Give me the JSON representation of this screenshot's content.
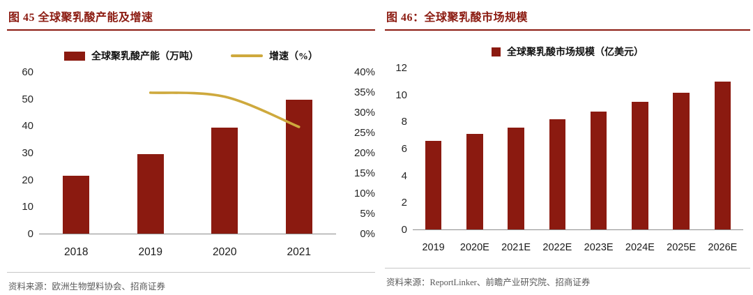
{
  "colors": {
    "bar": "#8B1A10",
    "line": "#CEA93D",
    "title": "#8B1A10",
    "axis_line": "#8c8c8c",
    "source_text": "#5a5a5a"
  },
  "left_panel": {
    "title": "图 45 全球聚乳酸产能及增速",
    "legend": [
      {
        "label": "全球聚乳酸产能（万吨）",
        "swatch": "bar"
      },
      {
        "label": "增速（%）",
        "swatch": "line"
      }
    ],
    "source": "资料来源：欧洲生物塑料协会、招商证券"
  },
  "right_panel": {
    "title": "图 46：全球聚乳酸市场规模",
    "legend": [
      {
        "label": "全球聚乳酸市场规模（亿美元）",
        "swatch": "bar"
      }
    ],
    "source": "资料来源：ReportLinker、前瞻产业研究院、招商证券"
  },
  "chart_data": [
    {
      "type": "bar",
      "title": "图 45 全球聚乳酸产能及增速",
      "categories": [
        "2018",
        "2019",
        "2020",
        "2021"
      ],
      "series": [
        {
          "name": "全球聚乳酸产能（万吨）",
          "type": "bar",
          "axis": "left",
          "values": [
            21.5,
            29.5,
            39.5,
            50
          ]
        },
        {
          "name": "增速（%）",
          "type": "line",
          "axis": "right",
          "values": [
            null,
            35,
            34,
            26.5
          ]
        }
      ],
      "left_axis": {
        "min": 0,
        "max": 60,
        "ticks": [
          0,
          10,
          20,
          30,
          40,
          50,
          60
        ],
        "suffix": ""
      },
      "right_axis": {
        "min": 0,
        "max": 40,
        "ticks": [
          0,
          5,
          10,
          15,
          20,
          25,
          30,
          35,
          40
        ],
        "suffix": "%"
      },
      "legend_position": "top",
      "grid": false
    },
    {
      "type": "bar",
      "title": "图 46：全球聚乳酸市场规模",
      "categories": [
        "2019",
        "2020E",
        "2021E",
        "2022E",
        "2023E",
        "2024E",
        "2025E",
        "2026E"
      ],
      "series": [
        {
          "name": "全球聚乳酸市场规模（亿美元）",
          "type": "bar",
          "axis": "left",
          "values": [
            6.6,
            7.1,
            7.6,
            8.2,
            8.8,
            9.5,
            10.2,
            11.0
          ]
        }
      ],
      "left_axis": {
        "min": 0,
        "max": 12,
        "ticks": [
          0,
          2,
          4,
          6,
          8,
          10,
          12
        ],
        "suffix": ""
      },
      "legend_position": "top",
      "grid": false
    }
  ]
}
